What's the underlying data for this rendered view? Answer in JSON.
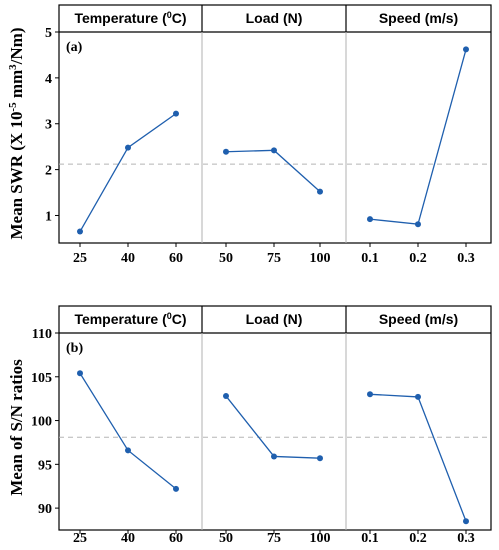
{
  "chart_data": [
    {
      "type": "line",
      "panel_label": "(a)",
      "ylabel_parts": [
        "Mean  SWR (X 10",
        "-5",
        " mm",
        "3",
        "/Nm)"
      ],
      "ylim": [
        0.4,
        5.0
      ],
      "yticks": [
        "1",
        "2",
        "3",
        "4",
        "5"
      ],
      "grand_mean": 2.12,
      "factors": [
        {
          "header_parts": [
            "Temperature (",
            "0",
            "C)"
          ],
          "categories": [
            "25",
            "40",
            "60"
          ],
          "values": [
            0.65,
            2.48,
            3.22
          ]
        },
        {
          "header_parts": [
            "Load (N)"
          ],
          "categories": [
            "50",
            "75",
            "100"
          ],
          "values": [
            2.39,
            2.42,
            1.52
          ]
        },
        {
          "header_parts": [
            "Speed (m/s)"
          ],
          "categories": [
            "0.1",
            "0.2",
            "0.3"
          ],
          "values": [
            0.92,
            0.81,
            4.62
          ]
        }
      ]
    },
    {
      "type": "line",
      "panel_label": "(b)",
      "ylabel_parts": [
        "Mean  of S/N ratios"
      ],
      "ylim": [
        87.5,
        110.0
      ],
      "yticks": [
        "90",
        "95",
        "100",
        "105",
        "110"
      ],
      "grand_mean": 98.1,
      "factors": [
        {
          "header_parts": [
            "Temperature (",
            "0",
            "C)"
          ],
          "categories": [
            "25",
            "40",
            "60"
          ],
          "values": [
            105.4,
            96.6,
            92.2
          ]
        },
        {
          "header_parts": [
            "Load (N)"
          ],
          "categories": [
            "50",
            "75",
            "100"
          ],
          "values": [
            102.8,
            95.9,
            95.7
          ]
        },
        {
          "header_parts": [
            "Speed (m/s)"
          ],
          "categories": [
            "0.1",
            "0.2",
            "0.3"
          ],
          "values": [
            103.0,
            102.7,
            88.5
          ]
        }
      ]
    }
  ],
  "colors": {
    "series": "#1f5fae",
    "mean_line": "#b5b5b5",
    "frame": "#000000"
  }
}
